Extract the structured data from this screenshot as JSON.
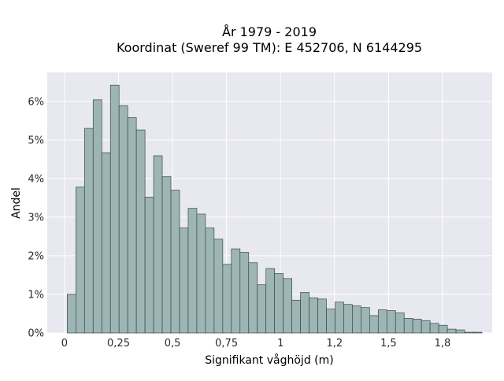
{
  "chart_data": {
    "type": "bar",
    "title_line1": "År 1979 - 2019",
    "title_line2": "Koordinat (Sweref 99 TM): E 452706, N 6144295",
    "xlabel": "Signifikant våghöjd (m)",
    "ylabel": "Andel",
    "xlim": [
      -0.08,
      1.98
    ],
    "ylim": [
      0,
      6.75
    ],
    "x_ticks": [
      {
        "value": 0,
        "label": "0"
      },
      {
        "value": 0.25,
        "label": "0,25"
      },
      {
        "value": 0.5,
        "label": "0,5"
      },
      {
        "value": 0.75,
        "label": "0,75"
      },
      {
        "value": 1.0,
        "label": "1"
      },
      {
        "value": 1.25,
        "label": "1,2"
      },
      {
        "value": 1.5,
        "label": "1,5"
      },
      {
        "value": 1.75,
        "label": "1,8"
      }
    ],
    "y_ticks": [
      {
        "value": 0,
        "label": "0%"
      },
      {
        "value": 1,
        "label": "1%"
      },
      {
        "value": 2,
        "label": "2%"
      },
      {
        "value": 3,
        "label": "3%"
      },
      {
        "value": 4,
        "label": "4%"
      },
      {
        "value": 5,
        "label": "5%"
      },
      {
        "value": 6,
        "label": "6%"
      }
    ],
    "bin_start": 0.0125,
    "bin_width": 0.04,
    "values": [
      1.0,
      3.78,
      5.3,
      6.04,
      4.67,
      6.42,
      5.89,
      5.58,
      5.26,
      3.52,
      4.59,
      4.05,
      3.7,
      2.72,
      3.23,
      3.08,
      2.72,
      2.43,
      1.78,
      2.18,
      2.09,
      1.82,
      1.25,
      1.67,
      1.54,
      1.41,
      0.85,
      1.05,
      0.91,
      0.88,
      0.62,
      0.8,
      0.74,
      0.7,
      0.66,
      0.45,
      0.6,
      0.58,
      0.52,
      0.38,
      0.36,
      0.32,
      0.25,
      0.2,
      0.1,
      0.08,
      0.02,
      0.02
    ],
    "grid": true,
    "colors": {
      "plot_bg": "#e8e8f1",
      "grid": "#ffffff",
      "bar_fill": "#9db5b4",
      "bar_stroke": "#3b4a49",
      "text": "#2a2a2a"
    }
  }
}
